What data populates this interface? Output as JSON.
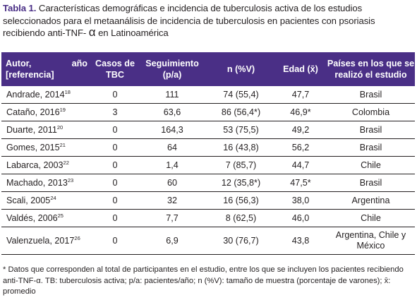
{
  "caption": {
    "label": "Tabla 1.",
    "text": " Características demográficas e incidencia de tuberculosis activa de los estudios seleccionados para el metaanálisis de incidencia de tuberculosis en pacientes con psoriasis recibiendo anti-TNF- ",
    "alpha": "α",
    "tail": " en Latinoamérica"
  },
  "headers": {
    "author_line1": "Autor,",
    "author_year": "año",
    "author_line2": "[referencia]",
    "cases": "Casos de TBC",
    "followup": "Seguimiento (p/a)",
    "n": "n (%V)",
    "age": "Edad (x̄)",
    "countries": "Países en los que se realizó el estudio"
  },
  "rows": [
    {
      "author": "Andrade, 2014",
      "ref": "18",
      "cases": "0",
      "followup": "111",
      "n": "74 (55,4)",
      "age": "47,7",
      "countries": "Brasil"
    },
    {
      "author": "Cataño, 2016",
      "ref": "19",
      "cases": "3",
      "followup": "63,6",
      "n": "86 (56,4*)",
      "age": "46,9*",
      "countries": "Colombia"
    },
    {
      "author": "Duarte, 2011",
      "ref": "20",
      "cases": "0",
      "followup": "164,3",
      "n": "53 (75,5)",
      "age": "49,2",
      "countries": "Brasil"
    },
    {
      "author": "Gomes, 2015",
      "ref": "21",
      "cases": "0",
      "followup": "64",
      "n": "16 (43,8)",
      "age": "56,2",
      "countries": "Brasil"
    },
    {
      "author": "Labarca, 2003",
      "ref": "22",
      "cases": "0",
      "followup": "1,4",
      "n": "7 (85,7)",
      "age": "44,7",
      "countries": "Chile"
    },
    {
      "author": "Machado, 2013",
      "ref": "23",
      "cases": "0",
      "followup": "60",
      "n": "12 (35,8*)",
      "age": "47,5*",
      "countries": "Brasil"
    },
    {
      "author": "Scali, 2005",
      "ref": "24",
      "cases": "0",
      "followup": "32",
      "n": "16 (56,3)",
      "age": "38,0",
      "countries": "Argentina"
    },
    {
      "author": "Valdés, 2006",
      "ref": "25",
      "cases": "0",
      "followup": "7,7",
      "n": "8 (62,5)",
      "age": "46,0",
      "countries": "Chile"
    },
    {
      "author": "Valenzuela, 2017",
      "ref": "26",
      "cases": "0",
      "followup": "6,9",
      "n": "30 (76,7)",
      "age": "43,8",
      "countries": "Argentina, Chile y México"
    }
  ],
  "footnote": "* Datos que corresponden al total de participantes en el estudio, entre los que se incluyen los pacientes recibiendo anti-TNF-α. TB: tuberculosis activa; p/a: pacientes/año; n (%V): tamaño de muestra (porcentaje de varones); x̄: promedio"
}
